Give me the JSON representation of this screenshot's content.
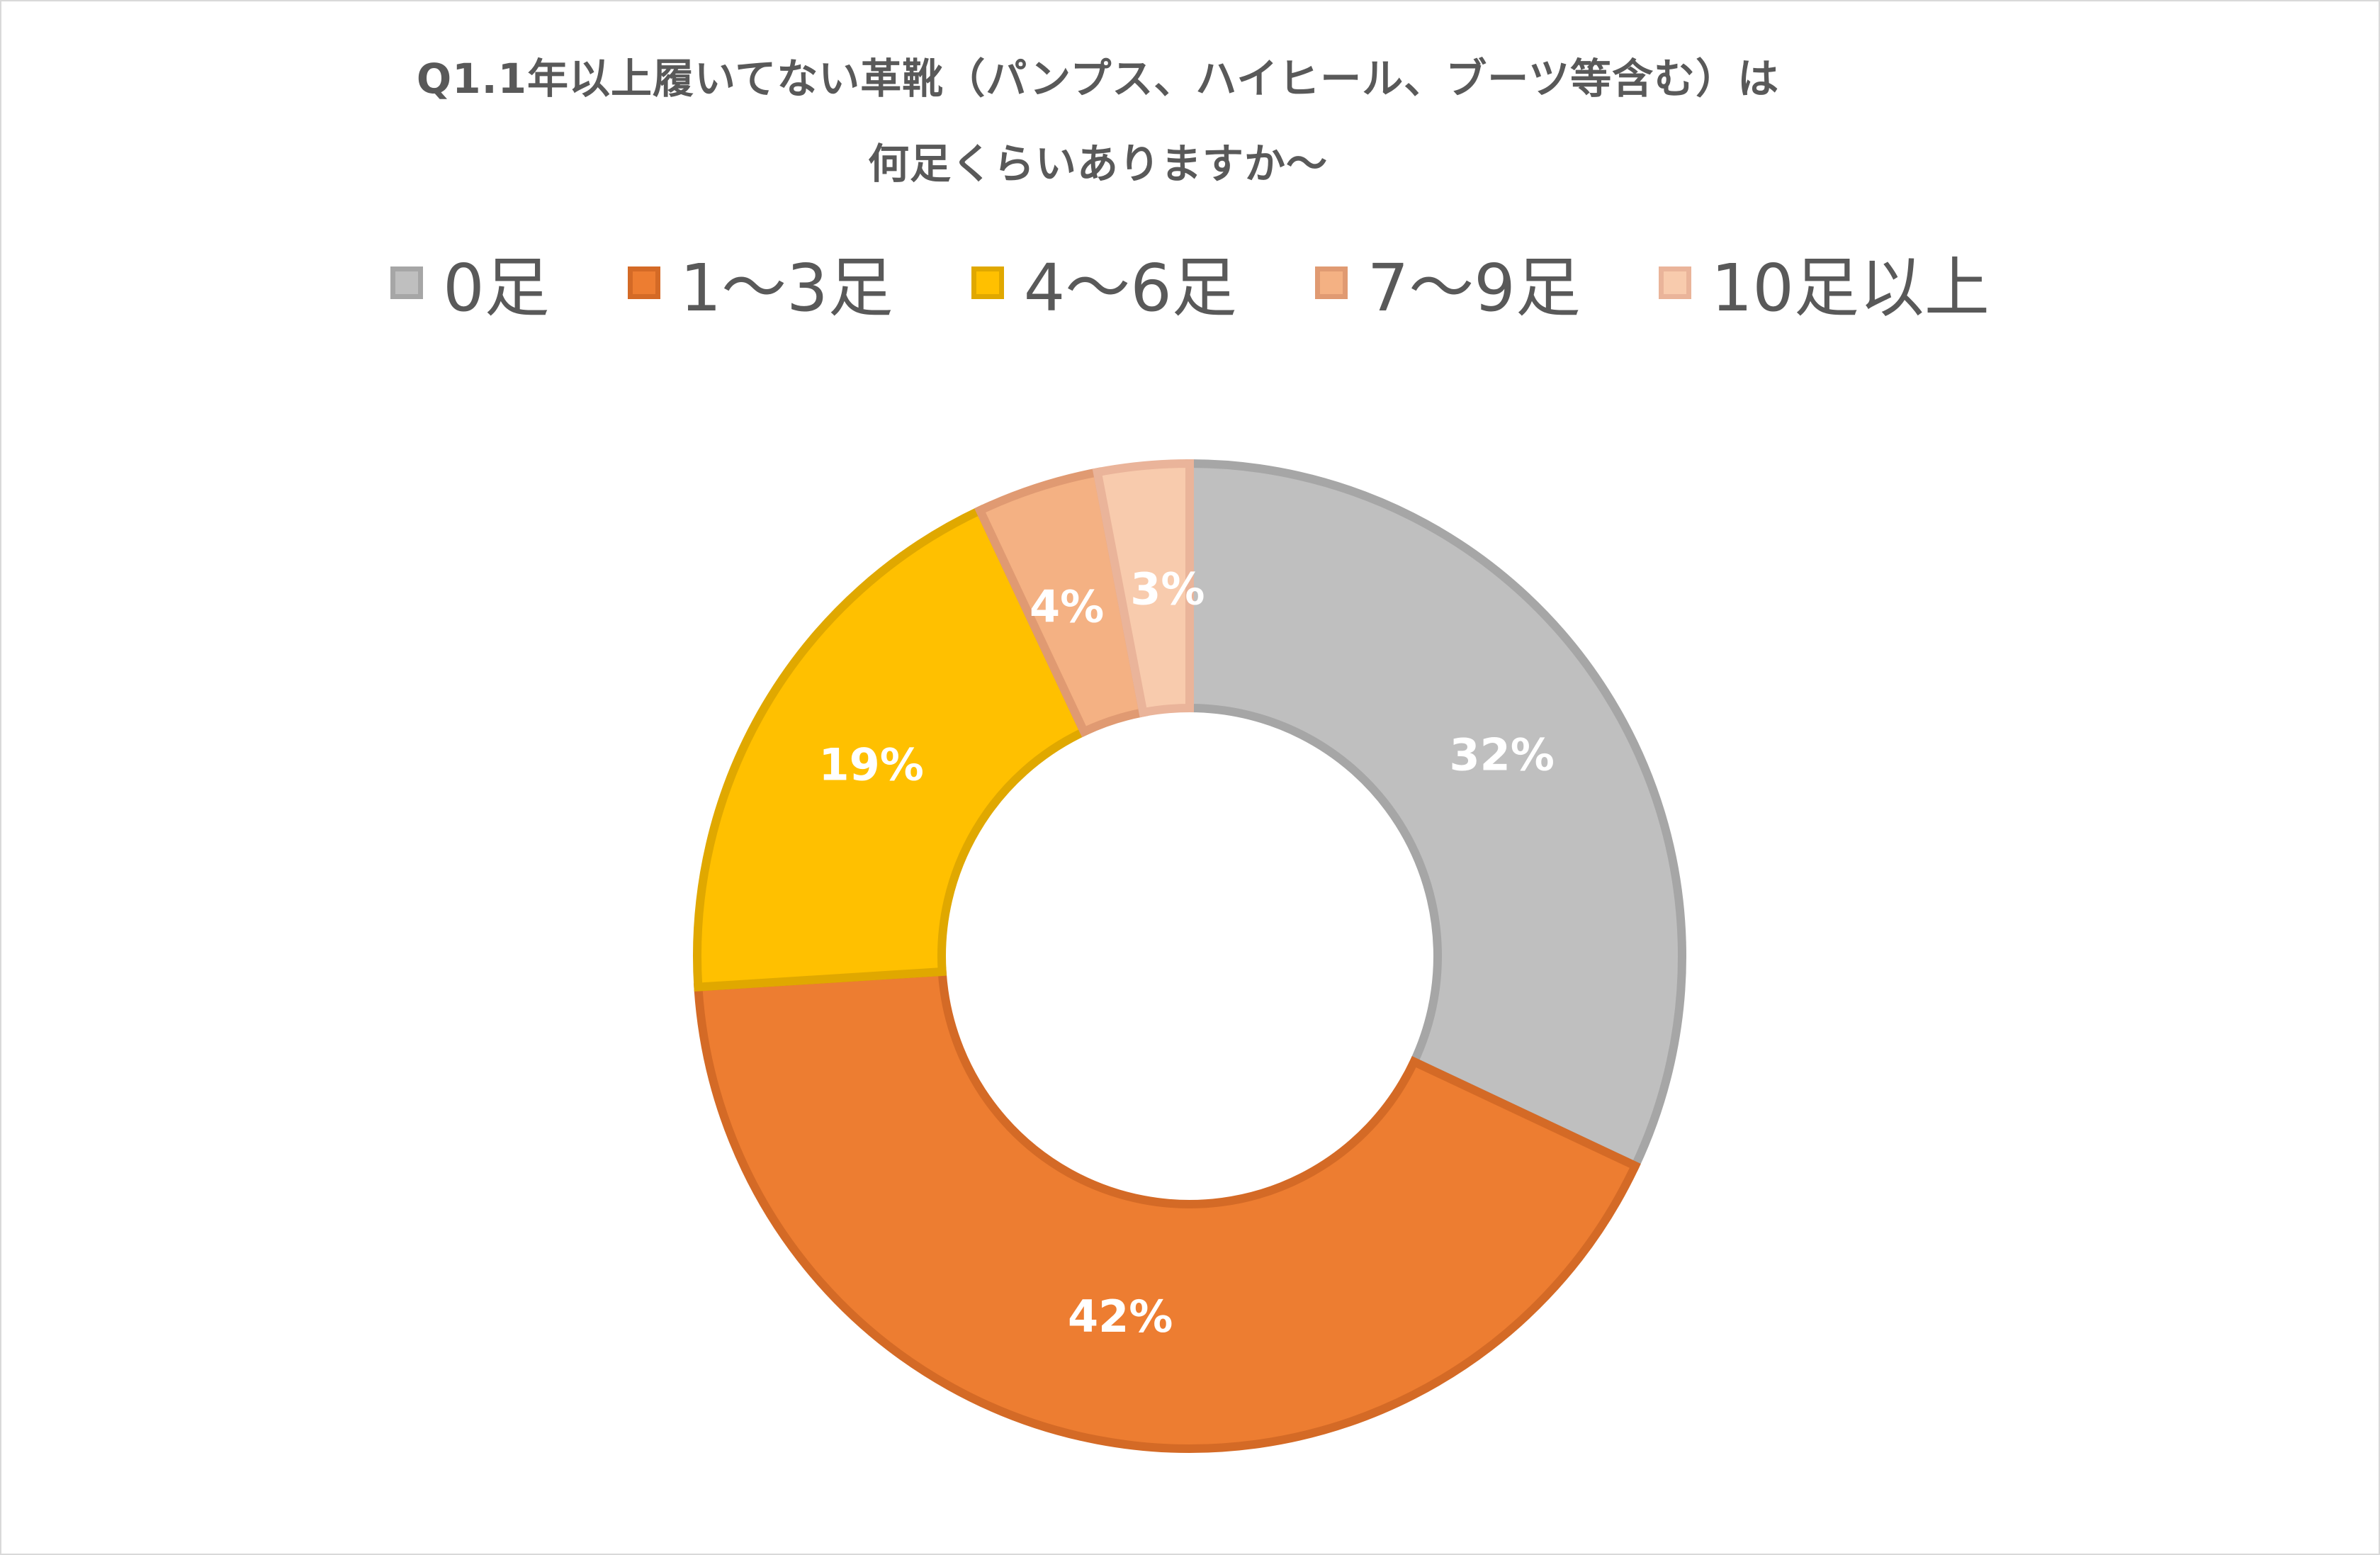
{
  "chart_data": {
    "type": "pie",
    "variant": "doughnut",
    "title_lines": [
      "Q1.1年以上履いてない革靴（パンプス、ハイヒール、ブーツ等含む）は",
      "何足くらいありますか～"
    ],
    "legend_position": "top",
    "categories": [
      "0足",
      "1～3足",
      "4～6足",
      "7～9足",
      "10足以上"
    ],
    "values": [
      32,
      42,
      19,
      4,
      3
    ],
    "labels": [
      "32%",
      "42%",
      "19%",
      "4%",
      "3%"
    ],
    "colors": [
      "#bfbfbf",
      "#ed7d31",
      "#ffc000",
      "#f4b183",
      "#f8cbad"
    ],
    "border_colors": [
      "#a6a6a6",
      "#d46a26",
      "#e0a800",
      "#e09a72",
      "#eab49a"
    ]
  }
}
